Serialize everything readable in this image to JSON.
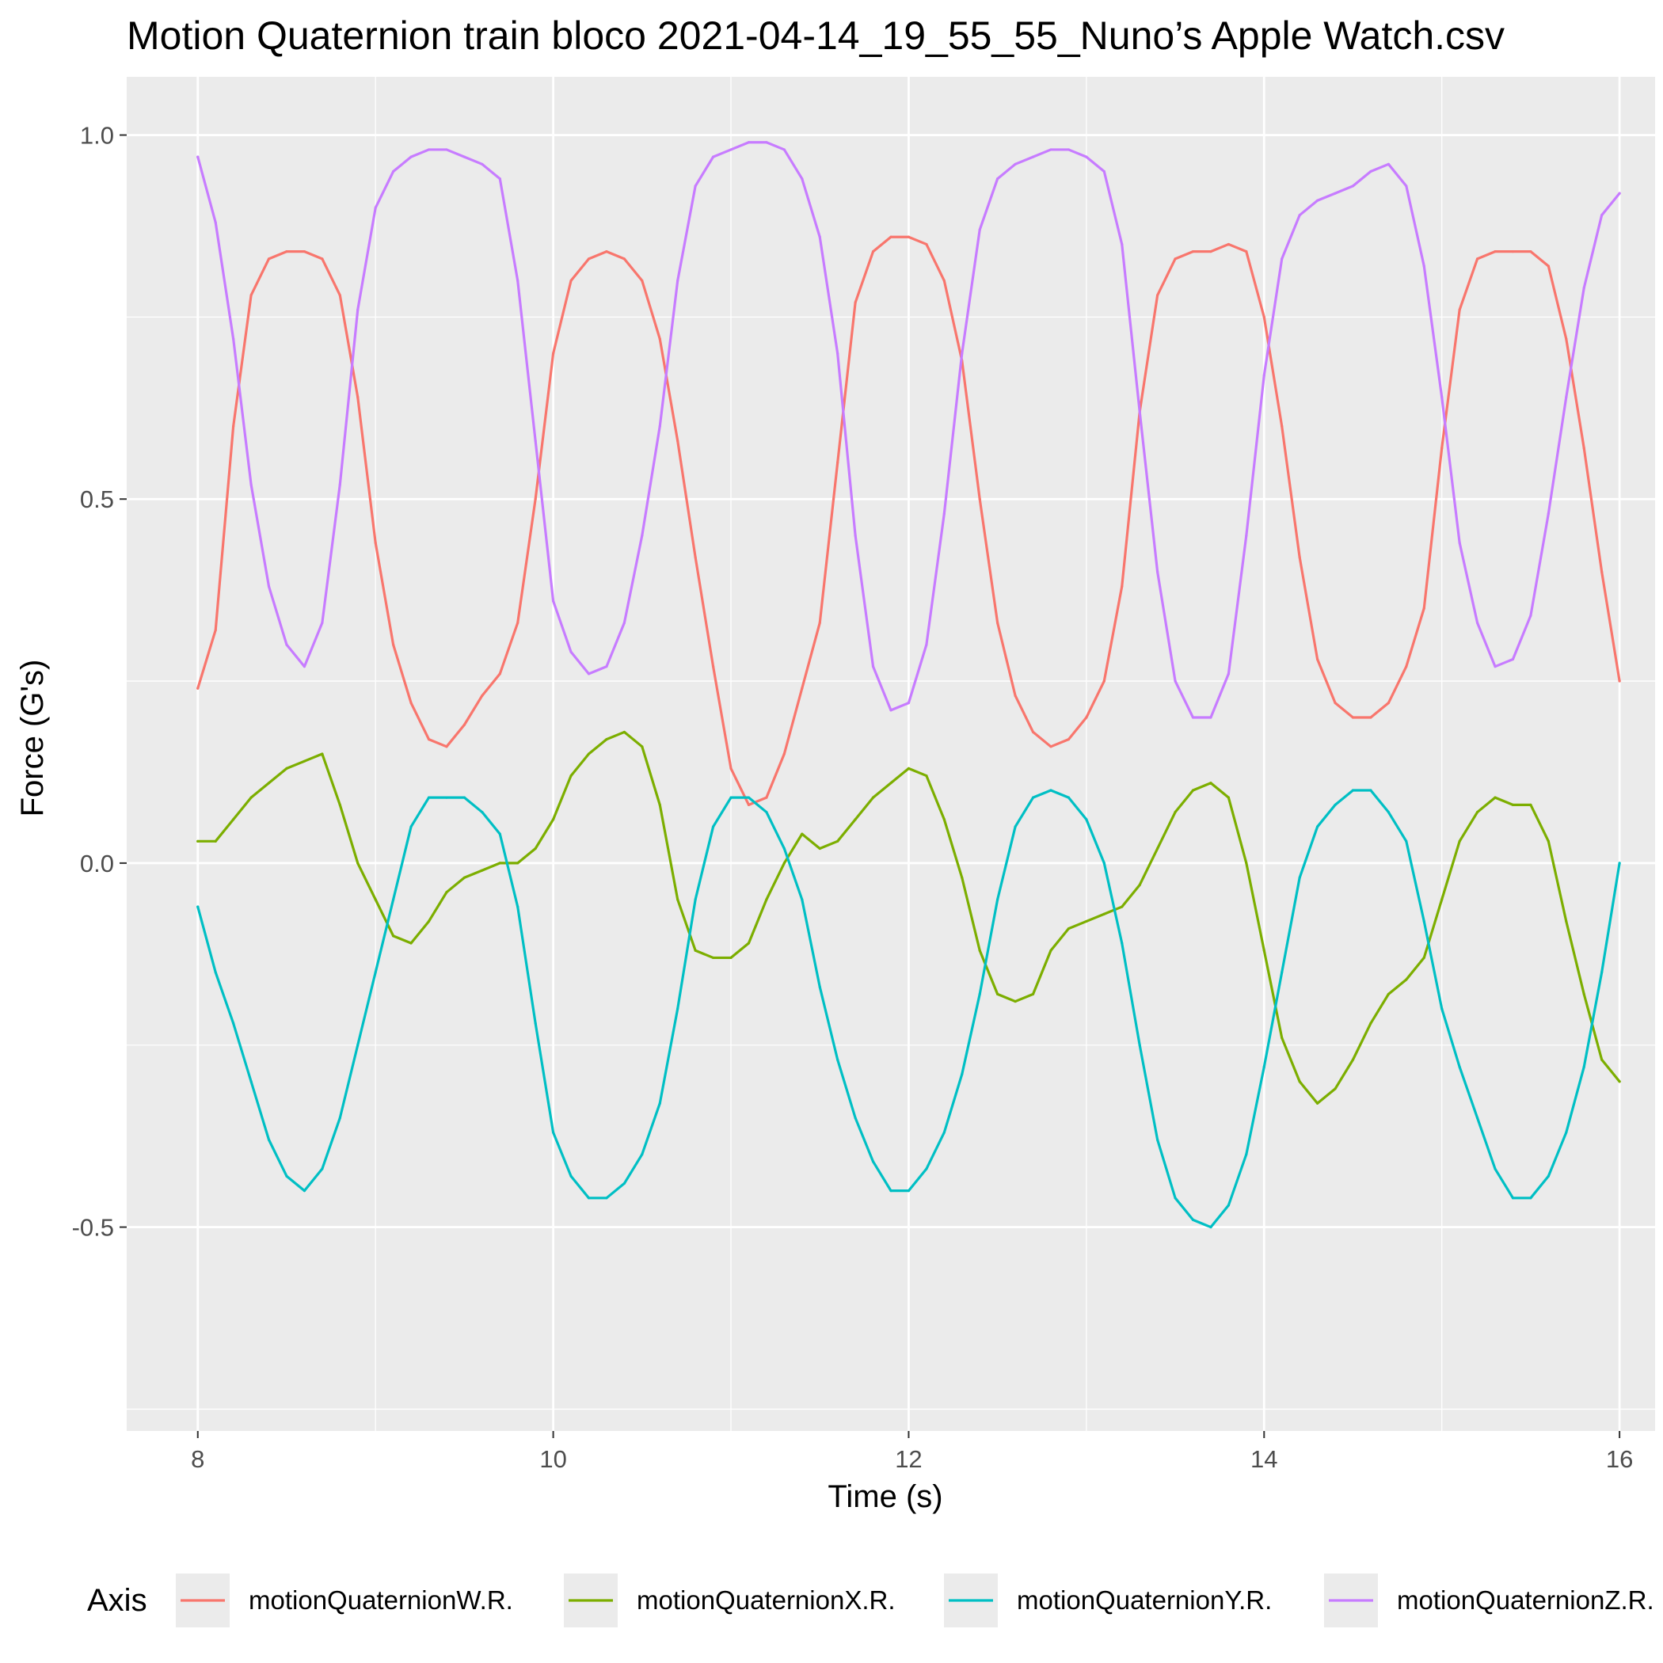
{
  "chart_data": {
    "type": "line",
    "title": "Motion Quaternion train bloco 2021-04-14_19_55_55_Nuno’s Apple Watch.csv",
    "xlabel": "Time (s)",
    "ylabel": "Force (G's)",
    "xlim": [
      7.6,
      16.2
    ],
    "ylim": [
      -0.78,
      1.08
    ],
    "xticks": [
      8,
      10,
      12,
      14,
      16
    ],
    "xtick_labels": [
      "8",
      "10",
      "12",
      "14",
      "16"
    ],
    "yticks": [
      -0.5,
      0.0,
      0.5,
      1.0
    ],
    "ytick_labels": [
      "-0.5",
      "0.0",
      "0.5",
      "1.0"
    ],
    "grid": true,
    "legend": {
      "title": "Axis",
      "position": "bottom"
    },
    "series": [
      {
        "name": "motionQuaternionW.R.",
        "color": "#F8766D",
        "x": [
          8.0,
          8.1,
          8.2,
          8.3,
          8.4,
          8.5,
          8.6,
          8.7,
          8.8,
          8.9,
          9.0,
          9.1,
          9.2,
          9.3,
          9.4,
          9.5,
          9.6,
          9.7,
          9.8,
          9.9,
          10.0,
          10.1,
          10.2,
          10.3,
          10.4,
          10.5,
          10.6,
          10.7,
          10.8,
          10.9,
          11.0,
          11.1,
          11.2,
          11.3,
          11.4,
          11.5,
          11.6,
          11.7,
          11.8,
          11.9,
          12.0,
          12.1,
          12.2,
          12.3,
          12.4,
          12.5,
          12.6,
          12.7,
          12.8,
          12.9,
          13.0,
          13.1,
          13.2,
          13.3,
          13.4,
          13.5,
          13.6,
          13.7,
          13.8,
          13.9,
          14.0,
          14.1,
          14.2,
          14.3,
          14.4,
          14.5,
          14.6,
          14.7,
          14.8,
          14.9,
          15.0,
          15.1,
          15.2,
          15.3,
          15.4,
          15.5,
          15.6,
          15.7,
          15.8,
          15.9,
          16.0
        ],
        "values": [
          0.24,
          0.32,
          0.6,
          0.78,
          0.83,
          0.84,
          0.84,
          0.83,
          0.78,
          0.64,
          0.44,
          0.3,
          0.22,
          0.17,
          0.16,
          0.19,
          0.23,
          0.26,
          0.33,
          0.5,
          0.7,
          0.8,
          0.83,
          0.84,
          0.83,
          0.8,
          0.72,
          0.58,
          0.42,
          0.27,
          0.13,
          0.08,
          0.09,
          0.15,
          0.24,
          0.33,
          0.55,
          0.77,
          0.84,
          0.86,
          0.86,
          0.85,
          0.8,
          0.69,
          0.5,
          0.33,
          0.23,
          0.18,
          0.16,
          0.17,
          0.2,
          0.25,
          0.38,
          0.62,
          0.78,
          0.83,
          0.84,
          0.84,
          0.85,
          0.84,
          0.75,
          0.6,
          0.42,
          0.28,
          0.22,
          0.2,
          0.2,
          0.22,
          0.27,
          0.35,
          0.57,
          0.76,
          0.83,
          0.84,
          0.84,
          0.84,
          0.82,
          0.72,
          0.57,
          0.4,
          0.25
        ]
      },
      {
        "name": "motionQuaternionX.R.",
        "color": "#7CAE00",
        "x": [
          8.0,
          8.1,
          8.2,
          8.3,
          8.4,
          8.5,
          8.6,
          8.7,
          8.8,
          8.9,
          9.0,
          9.1,
          9.2,
          9.3,
          9.4,
          9.5,
          9.6,
          9.7,
          9.8,
          9.9,
          10.0,
          10.1,
          10.2,
          10.3,
          10.4,
          10.5,
          10.6,
          10.7,
          10.8,
          10.9,
          11.0,
          11.1,
          11.2,
          11.3,
          11.4,
          11.5,
          11.6,
          11.7,
          11.8,
          11.9,
          12.0,
          12.1,
          12.2,
          12.3,
          12.4,
          12.5,
          12.6,
          12.7,
          12.8,
          12.9,
          13.0,
          13.1,
          13.2,
          13.3,
          13.4,
          13.5,
          13.6,
          13.7,
          13.8,
          13.9,
          14.0,
          14.1,
          14.2,
          14.3,
          14.4,
          14.5,
          14.6,
          14.7,
          14.8,
          14.9,
          15.0,
          15.1,
          15.2,
          15.3,
          15.4,
          15.5,
          15.6,
          15.7,
          15.8,
          15.9,
          16.0
        ],
        "values": [
          0.03,
          0.03,
          0.06,
          0.09,
          0.11,
          0.13,
          0.14,
          0.15,
          0.08,
          0.0,
          -0.05,
          -0.1,
          -0.11,
          -0.08,
          -0.04,
          -0.02,
          -0.01,
          0.0,
          0.0,
          0.02,
          0.06,
          0.12,
          0.15,
          0.17,
          0.18,
          0.16,
          0.08,
          -0.05,
          -0.12,
          -0.13,
          -0.13,
          -0.11,
          -0.05,
          0.0,
          0.04,
          0.02,
          0.03,
          0.06,
          0.09,
          0.11,
          0.13,
          0.12,
          0.06,
          -0.02,
          -0.12,
          -0.18,
          -0.19,
          -0.18,
          -0.12,
          -0.09,
          -0.08,
          -0.07,
          -0.06,
          -0.03,
          0.02,
          0.07,
          0.1,
          0.11,
          0.09,
          0.0,
          -0.12,
          -0.24,
          -0.3,
          -0.33,
          -0.31,
          -0.27,
          -0.22,
          -0.18,
          -0.16,
          -0.13,
          -0.05,
          0.03,
          0.07,
          0.09,
          0.08,
          0.08,
          0.03,
          -0.08,
          -0.18,
          -0.27,
          -0.3
        ]
      },
      {
        "name": "motionQuaternionY.R.",
        "color": "#00BFC4",
        "x": [
          8.0,
          8.1,
          8.2,
          8.3,
          8.4,
          8.5,
          8.6,
          8.7,
          8.8,
          8.9,
          9.0,
          9.1,
          9.2,
          9.3,
          9.4,
          9.5,
          9.6,
          9.7,
          9.8,
          9.9,
          10.0,
          10.1,
          10.2,
          10.3,
          10.4,
          10.5,
          10.6,
          10.7,
          10.8,
          10.9,
          11.0,
          11.1,
          11.2,
          11.3,
          11.4,
          11.5,
          11.6,
          11.7,
          11.8,
          11.9,
          12.0,
          12.1,
          12.2,
          12.3,
          12.4,
          12.5,
          12.6,
          12.7,
          12.8,
          12.9,
          13.0,
          13.1,
          13.2,
          13.3,
          13.4,
          13.5,
          13.6,
          13.7,
          13.8,
          13.9,
          14.0,
          14.1,
          14.2,
          14.3,
          14.4,
          14.5,
          14.6,
          14.7,
          14.8,
          14.9,
          15.0,
          15.1,
          15.2,
          15.3,
          15.4,
          15.5,
          15.6,
          15.7,
          15.8,
          15.9,
          16.0
        ],
        "values": [
          -0.06,
          -0.15,
          -0.22,
          -0.3,
          -0.38,
          -0.43,
          -0.45,
          -0.42,
          -0.35,
          -0.25,
          -0.15,
          -0.05,
          0.05,
          0.09,
          0.09,
          0.09,
          0.07,
          0.04,
          -0.06,
          -0.22,
          -0.37,
          -0.43,
          -0.46,
          -0.46,
          -0.44,
          -0.4,
          -0.33,
          -0.2,
          -0.05,
          0.05,
          0.09,
          0.09,
          0.07,
          0.02,
          -0.05,
          -0.17,
          -0.27,
          -0.35,
          -0.41,
          -0.45,
          -0.45,
          -0.42,
          -0.37,
          -0.29,
          -0.18,
          -0.05,
          0.05,
          0.09,
          0.1,
          0.09,
          0.06,
          0.0,
          -0.11,
          -0.25,
          -0.38,
          -0.46,
          -0.49,
          -0.5,
          -0.47,
          -0.4,
          -0.28,
          -0.15,
          -0.02,
          0.05,
          0.08,
          0.1,
          0.1,
          0.07,
          0.03,
          -0.08,
          -0.2,
          -0.28,
          -0.35,
          -0.42,
          -0.46,
          -0.46,
          -0.43,
          -0.37,
          -0.28,
          -0.15,
          0.0
        ]
      },
      {
        "name": "motionQuaternionZ.R.",
        "color": "#C77CFF",
        "x": [
          8.0,
          8.1,
          8.2,
          8.3,
          8.4,
          8.5,
          8.6,
          8.7,
          8.8,
          8.9,
          9.0,
          9.1,
          9.2,
          9.3,
          9.4,
          9.5,
          9.6,
          9.7,
          9.8,
          9.9,
          10.0,
          10.1,
          10.2,
          10.3,
          10.4,
          10.5,
          10.6,
          10.7,
          10.8,
          10.9,
          11.0,
          11.1,
          11.2,
          11.3,
          11.4,
          11.5,
          11.6,
          11.7,
          11.8,
          11.9,
          12.0,
          12.1,
          12.2,
          12.3,
          12.4,
          12.5,
          12.6,
          12.7,
          12.8,
          12.9,
          13.0,
          13.1,
          13.2,
          13.3,
          13.4,
          13.5,
          13.6,
          13.7,
          13.8,
          13.9,
          14.0,
          14.1,
          14.2,
          14.3,
          14.4,
          14.5,
          14.6,
          14.7,
          14.8,
          14.9,
          15.0,
          15.1,
          15.2,
          15.3,
          15.4,
          15.5,
          15.6,
          15.7,
          15.8,
          15.9,
          16.0
        ],
        "values": [
          0.97,
          0.88,
          0.72,
          0.52,
          0.38,
          0.3,
          0.27,
          0.33,
          0.52,
          0.76,
          0.9,
          0.95,
          0.97,
          0.98,
          0.98,
          0.97,
          0.96,
          0.94,
          0.8,
          0.58,
          0.36,
          0.29,
          0.26,
          0.27,
          0.33,
          0.45,
          0.6,
          0.8,
          0.93,
          0.97,
          0.98,
          0.99,
          0.99,
          0.98,
          0.94,
          0.86,
          0.7,
          0.45,
          0.27,
          0.21,
          0.22,
          0.3,
          0.48,
          0.7,
          0.87,
          0.94,
          0.96,
          0.97,
          0.98,
          0.98,
          0.97,
          0.95,
          0.85,
          0.62,
          0.4,
          0.25,
          0.2,
          0.2,
          0.26,
          0.45,
          0.67,
          0.83,
          0.89,
          0.91,
          0.92,
          0.93,
          0.95,
          0.96,
          0.93,
          0.82,
          0.64,
          0.44,
          0.33,
          0.27,
          0.28,
          0.34,
          0.48,
          0.64,
          0.79,
          0.89,
          0.92
        ]
      }
    ]
  }
}
